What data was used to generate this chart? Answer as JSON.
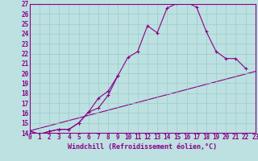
{
  "xlabel": "Windchill (Refroidissement éolien,°C)",
  "bg_color": "#bde0e0",
  "line_color": "#880088",
  "spine_color": "#880088",
  "xmin": 0,
  "xmax": 23,
  "ymin": 14,
  "ymax": 27,
  "line1_x": [
    0,
    1,
    2,
    3,
    4,
    5,
    6,
    7,
    8,
    9,
    10,
    11,
    12,
    13,
    14,
    15,
    16,
    17,
    18,
    19,
    20,
    21,
    22
  ],
  "line1_y": [
    14.2,
    13.85,
    14.15,
    14.35,
    14.35,
    15.0,
    16.1,
    17.5,
    18.2,
    19.8,
    21.6,
    22.2,
    24.8,
    24.1,
    26.6,
    27.05,
    27.15,
    26.7,
    24.2,
    22.2,
    21.5,
    21.5,
    20.5
  ],
  "line2_x": [
    0,
    1,
    2,
    3,
    4,
    5,
    6,
    7,
    8,
    9
  ],
  "line2_y": [
    14.2,
    13.85,
    14.15,
    14.35,
    14.35,
    15.0,
    16.1,
    16.5,
    17.8,
    19.8
  ],
  "line3_x": [
    0,
    23
  ],
  "line3_y": [
    14.2,
    20.2
  ],
  "yticks": [
    14,
    15,
    16,
    17,
    18,
    19,
    20,
    21,
    22,
    23,
    24,
    25,
    26,
    27
  ],
  "xticks": [
    0,
    1,
    2,
    3,
    4,
    5,
    6,
    7,
    8,
    9,
    10,
    11,
    12,
    13,
    14,
    15,
    16,
    17,
    18,
    19,
    20,
    21,
    22,
    23
  ],
  "tick_fontsize": 5.5,
  "xlabel_fontsize": 6.0
}
